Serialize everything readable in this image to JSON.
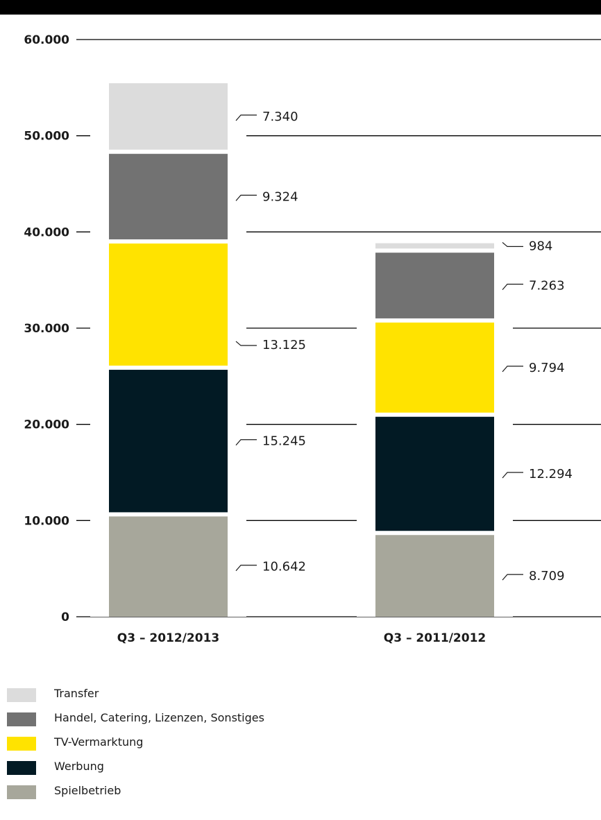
{
  "chart_data": {
    "type": "bar",
    "stacked": true,
    "categories": [
      "Q3 – 2012/2013",
      "Q3 – 2011/2012"
    ],
    "series": [
      {
        "name": "Spielbetrieb",
        "values": [
          10642,
          8709
        ],
        "labels": [
          "10.642",
          "8.709"
        ],
        "color": "#a7a79b"
      },
      {
        "name": "Werbung",
        "values": [
          15245,
          12294
        ],
        "labels": [
          "15.245",
          "12.294"
        ],
        "color": "#021a24"
      },
      {
        "name": "TV-Vermarktung",
        "values": [
          13125,
          9794
        ],
        "labels": [
          "13.125",
          "9.794"
        ],
        "color": "#ffe300"
      },
      {
        "name": "Handel, Catering, Lizenzen, Sonstiges",
        "values": [
          9324,
          7263
        ],
        "labels": [
          "9.324",
          "7.263"
        ],
        "color": "#727272"
      },
      {
        "name": "Transfer",
        "values": [
          7340,
          984
        ],
        "labels": [
          "7.340",
          "984"
        ],
        "color": "#dcdcdc"
      }
    ],
    "yticks": [
      0,
      10000,
      20000,
      30000,
      40000,
      50000,
      60000
    ],
    "ytick_labels": [
      "0",
      "10.000",
      "20.000",
      "30.000",
      "40.000",
      "50.000",
      "60.000"
    ],
    "ylim": [
      0,
      60000
    ],
    "grid": true,
    "legend_position": "bottom-left"
  },
  "legend": [
    {
      "label": "Transfer",
      "color": "#dcdcdc"
    },
    {
      "label": "Handel, Catering, Lizenzen, Sonstiges",
      "color": "#727272"
    },
    {
      "label": "TV-Vermarktung",
      "color": "#ffe300"
    },
    {
      "label": "Werbung",
      "color": "#021a24"
    },
    {
      "label": "Spielbetrieb",
      "color": "#a7a79b"
    }
  ]
}
